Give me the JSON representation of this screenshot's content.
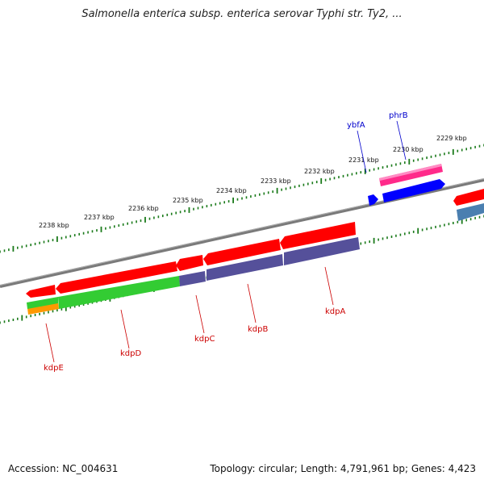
{
  "title": "Salmonella enterica subsp. enterica serovar Typhi str. Ty2, ...",
  "footer": {
    "accession": "Accession: NC_004631",
    "summary": "Topology: circular; Length: 4,791,961 bp; Genes: 4,423"
  },
  "ruler_labels": [
    "2238 kbp",
    "2237 kbp",
    "2236 kbp",
    "2235 kbp",
    "2234 kbp",
    "2233 kbp",
    "2232 kbp",
    "2231 kbp",
    "2230 kbp",
    "2229 kbp"
  ],
  "genes_forward": [
    "ybfA",
    "phrB"
  ],
  "genes_reverse": [
    "kdpE",
    "kdpD",
    "kdpC",
    "kdpB",
    "kdpA"
  ],
  "colors": {
    "backbone": "#808080",
    "cds": "#ff0000",
    "forward_gene": "#0000ff",
    "pink_feature": "#ff2a8a",
    "purple_feature": "#55509a",
    "green_feature": "#33cc33",
    "orange_feature": "#ff9900",
    "steel_feature": "#4a7fb0",
    "tick": "#1a7a1a",
    "reverse_label": "#cc0000",
    "forward_label": "#0000cc"
  }
}
